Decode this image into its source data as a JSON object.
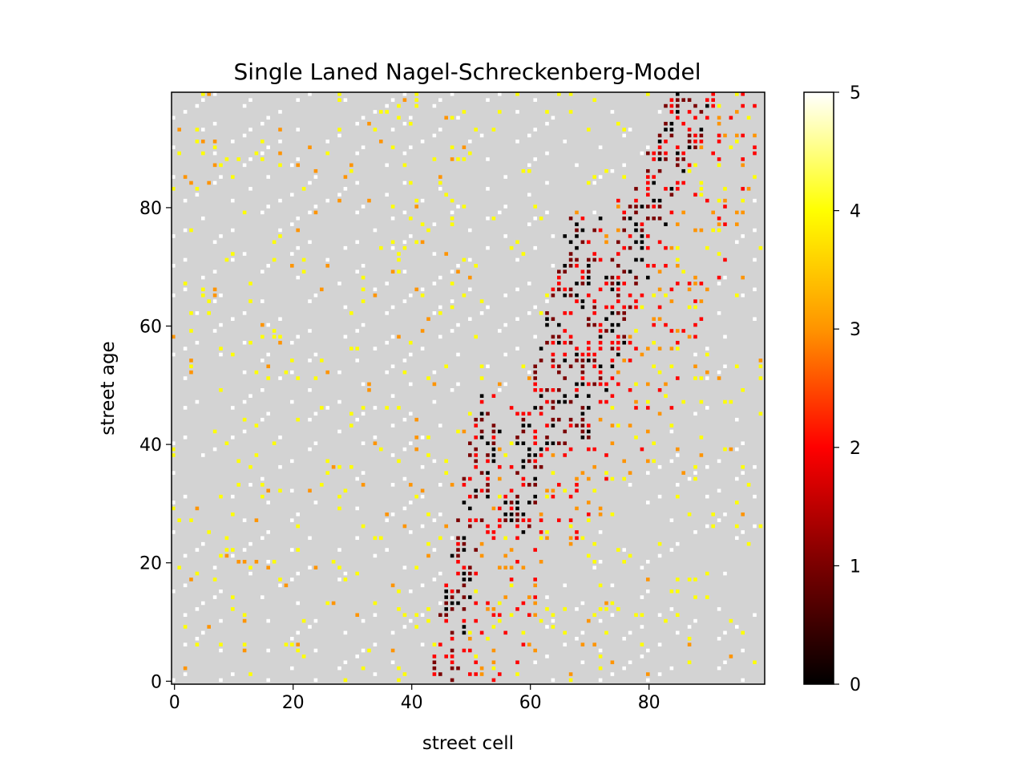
{
  "chart_data": {
    "type": "heatmap",
    "title": "Single Laned Nagel-Schreckenberg-Model",
    "xlabel": "street cell",
    "ylabel": "street age",
    "x_range": [
      0,
      99
    ],
    "y_range": [
      0,
      99
    ],
    "x_ticks": [
      0,
      20,
      40,
      60,
      80
    ],
    "y_ticks": [
      0,
      20,
      40,
      60,
      80
    ],
    "empty_cell_color": "#d3d3d3",
    "colormap": "hot",
    "colorbar": {
      "min": 0,
      "max": 5,
      "ticks": [
        0,
        1,
        2,
        3,
        4,
        5
      ],
      "colors": [
        "#000000",
        "#7a0000",
        "#ff0000",
        "#ff9400",
        "#ffff00",
        "#ffffff"
      ]
    },
    "grid": false,
    "jam_regions": [
      {
        "time_from": 0,
        "time_to": 48,
        "cell_start_at_t0": 43,
        "cell_shift_per_step": 0.17,
        "width": 5
      },
      {
        "time_from": 25,
        "time_to": 78,
        "cell_start_at_t0": 48,
        "cell_shift_per_step": 0.24,
        "width": 6
      },
      {
        "time_from": 40,
        "time_to": 99,
        "cell_start_at_t0": 47,
        "cell_shift_per_step": 0.37,
        "width": 8
      }
    ]
  }
}
